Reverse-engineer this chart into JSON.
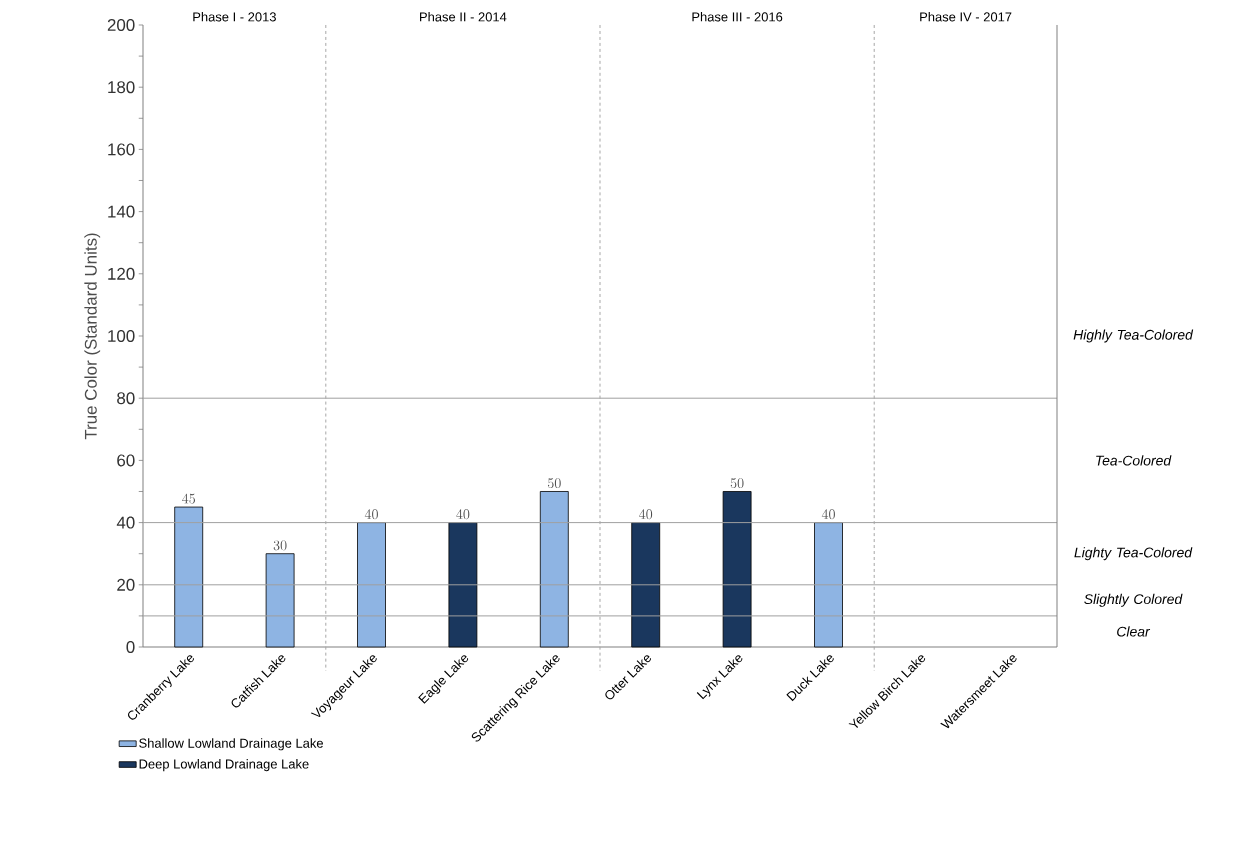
{
  "chart_data": {
    "type": "bar",
    "ylabel": "True Color (Standard Units)",
    "categories": [
      "Cranberry Lake",
      "Catfish Lake",
      "Voyageur Lake",
      "Eagle Lake",
      "Scattering Rice Lake",
      "Otter Lake",
      "Lynx Lake",
      "Duck Lake",
      "Yellow Birch Lake",
      "Watersmeet Lake"
    ],
    "series": [
      {
        "name": "Shallow Lowland Drainage Lake",
        "color": "#8eb4e3",
        "values": [
          45,
          30,
          40,
          null,
          50,
          null,
          null,
          40,
          null,
          null
        ]
      },
      {
        "name": "Deep Lowland Drainage Lake",
        "color": "#1a375e",
        "values": [
          null,
          null,
          null,
          40,
          null,
          40,
          50,
          null,
          null,
          null
        ]
      }
    ],
    "ylim": [
      0,
      200
    ],
    "yticks": [
      0,
      {
        "value": 10,
        "label": null
      },
      20,
      {
        "value": 30,
        "label": null
      },
      40,
      {
        "value": 50,
        "label": null
      },
      60,
      {
        "value": 70,
        "label": null
      },
      80,
      {
        "value": 90,
        "label": null
      },
      100,
      {
        "value": 110,
        "label": null
      },
      120,
      {
        "value": 130,
        "label": null
      },
      140,
      {
        "value": 150,
        "label": null
      },
      160,
      {
        "value": 170,
        "label": null
      },
      180,
      {
        "value": 190,
        "label": null
      },
      200
    ],
    "ref_lines": [
      {
        "axis": "y",
        "value": 10,
        "color": "#a0a0a0",
        "line_style": "solid"
      },
      {
        "axis": "y",
        "value": 20,
        "color": "#a0a0a0",
        "line_style": "solid"
      },
      {
        "axis": "y",
        "value": 40,
        "color": "#a0a0a0",
        "line_style": "solid"
      },
      {
        "axis": "y",
        "value": 80,
        "color": "#a0a0a0",
        "line_style": "solid"
      }
    ],
    "annotations": [
      "Clear",
      "Slightly Colored",
      "Lighty Tea-Colored",
      "Tea-Colored",
      "Highly Tea-Colored",
      "Phase I - 2013",
      "Phase II - 2014",
      "Phase III - 2016",
      "Phase IV - 2017"
    ],
    "data_labels": true,
    "legend": "bottom left",
    "grid": false
  }
}
